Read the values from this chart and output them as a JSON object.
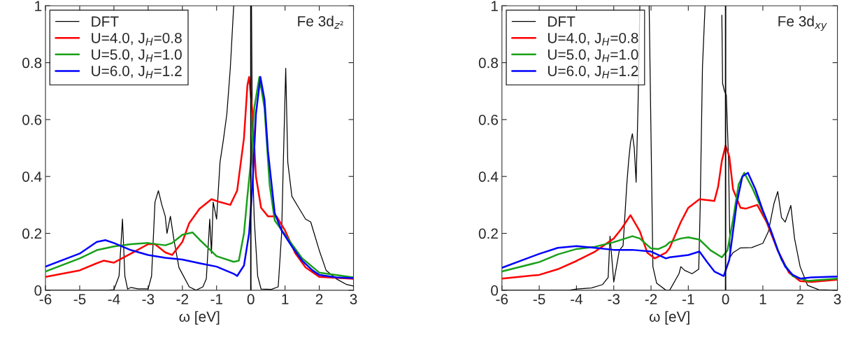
{
  "chart_data": [
    {
      "type": "line",
      "xlabel": "ω [eV]",
      "annotations": [
        "Fe 3d$_{z²}$"
      ],
      "xlim": [
        -6,
        3
      ],
      "ylim": [
        0,
        1
      ],
      "xticks": [
        -6,
        -5,
        -4,
        -3,
        -2,
        -1,
        0,
        1,
        2,
        3
      ],
      "yticks": [
        0,
        0.2,
        0.4,
        0.6,
        0.8,
        1
      ],
      "legend": "top left",
      "grid": false,
      "ref_lines": [
        {
          "axis": "x",
          "value": 0,
          "color": "#000000"
        }
      ],
      "series": [
        {
          "name": "DFT",
          "color": "#000000",
          "x": [
            -6,
            -4.2,
            -4.0,
            -3.85,
            -3.75,
            -3.68,
            -3.6,
            -3.5,
            -3.3,
            -3.0,
            -2.9,
            -2.8,
            -2.7,
            -2.6,
            -2.5,
            -2.45,
            -2.35,
            -2.25,
            -2.1,
            -1.8,
            -1.6,
            -1.4,
            -1.3,
            -1.2,
            -1.15,
            -1.1,
            -1.0,
            -0.9,
            -0.8,
            -0.7,
            -0.6,
            -0.5,
            -0.2,
            0.02,
            0.05,
            0.1,
            0.2,
            0.3,
            0.6,
            0.8,
            0.9,
            0.95,
            1.02,
            1.08,
            1.2,
            1.4,
            1.6,
            1.75,
            1.85,
            2.0,
            2.2,
            2.5,
            2.8,
            3.0
          ],
          "values": [
            0,
            0,
            0.002,
            0.05,
            0.25,
            0.05,
            0.004,
            0.01,
            0.005,
            0.005,
            0.05,
            0.31,
            0.35,
            0.3,
            0.26,
            0.2,
            0.26,
            0.18,
            0.08,
            0.012,
            0,
            0.012,
            0.04,
            0.25,
            0.13,
            0.31,
            0.25,
            0.45,
            0.53,
            0.62,
            0.78,
            1.0,
            null,
            1.0,
            0.45,
            0.25,
            0.05,
            0.004,
            0.003,
            0.012,
            0.2,
            0.45,
            0.78,
            0.45,
            0.33,
            0.29,
            0.25,
            0.24,
            0.2,
            0.14,
            0.07,
            0.04,
            0.02,
            0.015
          ]
        },
        {
          "name": "U=4.0, J$_{H}$=0.8",
          "color": "#ff0000",
          "x": [
            -6,
            -5,
            -4.5,
            -4.3,
            -4,
            -3.5,
            -3,
            -2.8,
            -2.5,
            -2.3,
            -2,
            -1.8,
            -1.5,
            -1.15,
            -0.9,
            -0.6,
            -0.4,
            -0.2,
            -0.1,
            -0.05,
            0.05,
            0.15,
            0.3,
            0.5,
            0.75,
            1.0,
            1.3,
            1.6,
            2.0,
            3.0
          ],
          "values": [
            0.047,
            0.07,
            0.095,
            0.104,
            0.097,
            0.129,
            0.162,
            0.162,
            0.133,
            0.124,
            0.17,
            0.236,
            0.286,
            0.32,
            0.31,
            0.3,
            0.35,
            0.535,
            0.72,
            0.75,
            0.62,
            0.4,
            0.29,
            0.26,
            0.26,
            0.21,
            0.13,
            0.08,
            0.047,
            0.04
          ]
        },
        {
          "name": "U=5.0, J$_{H}$=1.0",
          "color": "#1aa01a",
          "x": [
            -6,
            -5,
            -4.5,
            -4,
            -3.5,
            -3,
            -2.5,
            -2.3,
            -2,
            -1.7,
            -1.5,
            -1,
            -0.5,
            -0.35,
            -0.2,
            -0.1,
            0,
            0.1,
            0.25,
            0.4,
            0.55,
            0.7,
            1.0,
            1.5,
            2.0,
            3.0
          ],
          "values": [
            0.066,
            0.112,
            0.141,
            0.154,
            0.162,
            0.166,
            0.158,
            0.166,
            0.195,
            0.203,
            0.178,
            0.12,
            0.1,
            0.104,
            0.2,
            0.33,
            0.45,
            0.64,
            0.75,
            0.64,
            0.37,
            0.245,
            0.195,
            0.112,
            0.062,
            0.045
          ]
        },
        {
          "name": "U=6.0, J$_{H}$=1.2",
          "color": "#0000ff",
          "x": [
            -6,
            -5,
            -4.5,
            -4.25,
            -4,
            -3.5,
            -3,
            -2.5,
            -2,
            -1.5,
            -1,
            -0.5,
            -0.4,
            -0.2,
            -0.05,
            0.05,
            0.15,
            0.28,
            0.4,
            0.5,
            0.7,
            0.9,
            1.2,
            1.5,
            1.8,
            2.0,
            2.5,
            3.0
          ],
          "values": [
            0.083,
            0.129,
            0.17,
            0.176,
            0.166,
            0.141,
            0.124,
            0.114,
            0.108,
            0.095,
            0.083,
            0.058,
            0.05,
            0.087,
            0.2,
            0.37,
            0.62,
            0.75,
            0.67,
            0.49,
            0.27,
            0.21,
            0.154,
            0.104,
            0.07,
            0.054,
            0.045,
            0.043
          ]
        }
      ]
    },
    {
      "type": "line",
      "xlabel": "ω [eV]",
      "annotations": [
        "Fe 3d$_{xy}$"
      ],
      "xlim": [
        -6,
        3
      ],
      "ylim": [
        0,
        1
      ],
      "xticks": [
        -6,
        -5,
        -4,
        -3,
        -2,
        -1,
        0,
        1,
        2,
        3
      ],
      "yticks": [
        0,
        0.2,
        0.4,
        0.6,
        0.8,
        1
      ],
      "legend": "top left",
      "grid": false,
      "ref_lines": [
        {
          "axis": "x",
          "value": 0,
          "color": "#000000"
        }
      ],
      "series": [
        {
          "name": "DFT",
          "color": "#000000",
          "x": [
            -6,
            -4.2,
            -4.0,
            -3.6,
            -3.3,
            -3.15,
            -3.1,
            -3.0,
            -2.85,
            -2.75,
            -2.65,
            -2.6,
            -2.55,
            -2.5,
            -2.45,
            -2.4,
            -2.35,
            -2.3,
            -2.2,
            -2.05,
            -1.95,
            -1.85,
            -1.6,
            -1.5,
            -1.25,
            -1.2,
            -1.1,
            -0.9,
            -0.72,
            -0.68,
            -0.62,
            -0.55,
            -0.3,
            -0.1,
            -0.08,
            -0.03,
            0.02,
            0.08,
            0.12,
            0.2,
            0.4,
            0.7,
            1.0,
            1.15,
            1.3,
            1.4,
            1.5,
            1.6,
            1.75,
            1.85,
            2.0,
            2.2,
            2.5,
            3.0
          ],
          "values": [
            0,
            0,
            0.004,
            0.008,
            0.02,
            0.045,
            0.19,
            0.029,
            0.14,
            0.157,
            0.372,
            0.455,
            0.52,
            0.55,
            0.5,
            0.38,
            0.64,
            1.0,
            null,
            1.0,
            0.083,
            0.025,
            0,
            0,
            0.058,
            0.083,
            0.07,
            0.058,
            0.074,
            0.3,
            0.785,
            1.0,
            null,
            0.967,
            0.727,
            0.7,
            0.686,
            0.455,
            0.116,
            0.132,
            0.149,
            0.15,
            0.165,
            0.207,
            0.306,
            0.347,
            0.256,
            0.24,
            0.298,
            0.182,
            0.083,
            0.017,
            0.002,
            0
          ]
        },
        {
          "name": "U=4.0, J$_{H}$=0.8",
          "color": "#ff0000",
          "x": [
            -6,
            -5,
            -4.5,
            -4,
            -3.5,
            -3,
            -2.8,
            -2.55,
            -2.3,
            -2.1,
            -1.9,
            -1.6,
            -1.5,
            -1.2,
            -1.0,
            -0.7,
            -0.3,
            -0.2,
            -0.1,
            0,
            0.1,
            0.2,
            0.4,
            0.55,
            0.85,
            1.1,
            1.4,
            1.7,
            2.0,
            2.3,
            3.0
          ],
          "values": [
            0.041,
            0.054,
            0.074,
            0.103,
            0.136,
            0.182,
            0.215,
            0.264,
            0.207,
            0.132,
            0.112,
            0.132,
            0.149,
            0.24,
            0.29,
            0.32,
            0.314,
            0.364,
            0.455,
            0.508,
            0.47,
            0.355,
            0.29,
            0.287,
            0.3,
            0.24,
            0.14,
            0.062,
            0.032,
            0.029,
            0.037
          ]
        },
        {
          "name": "U=5.0, J$_{H}$=1.0",
          "color": "#1aa01a",
          "x": [
            -6,
            -5,
            -4.5,
            -4,
            -3.5,
            -3,
            -2.5,
            -2.3,
            -2,
            -1.8,
            -1.6,
            -1.5,
            -1.2,
            -1.0,
            -0.7,
            -0.4,
            -0.1,
            0.05,
            0.2,
            0.35,
            0.5,
            0.7,
            0.9,
            1.2,
            1.5,
            1.8,
            2.2,
            3.0
          ],
          "values": [
            0.066,
            0.099,
            0.126,
            0.145,
            0.153,
            0.169,
            0.19,
            0.182,
            0.147,
            0.145,
            0.157,
            0.169,
            0.182,
            0.186,
            0.178,
            0.14,
            0.116,
            0.14,
            0.248,
            0.372,
            0.413,
            0.364,
            0.306,
            0.215,
            0.107,
            0.05,
            0.033,
            0.041
          ]
        },
        {
          "name": "U=6.0, J$_{H}$=1.2",
          "color": "#0000ff",
          "x": [
            -6,
            -5,
            -4.5,
            -4,
            -3.5,
            -3,
            -2.5,
            -2,
            -1.6,
            -1.5,
            -1,
            -0.7,
            -0.5,
            -0.3,
            -0.05,
            0.1,
            0.2,
            0.3,
            0.45,
            0.6,
            0.8,
            1.0,
            1.2,
            1.4,
            1.6,
            1.8,
            2.0,
            2.3,
            3.0
          ],
          "values": [
            0.079,
            0.128,
            0.149,
            0.155,
            0.149,
            0.142,
            0.142,
            0.136,
            0.112,
            0.116,
            0.124,
            0.136,
            0.1,
            0.066,
            0.05,
            0.107,
            0.207,
            0.306,
            0.4,
            0.413,
            0.355,
            0.28,
            0.215,
            0.14,
            0.083,
            0.054,
            0.041,
            0.045,
            0.048
          ]
        }
      ]
    }
  ]
}
